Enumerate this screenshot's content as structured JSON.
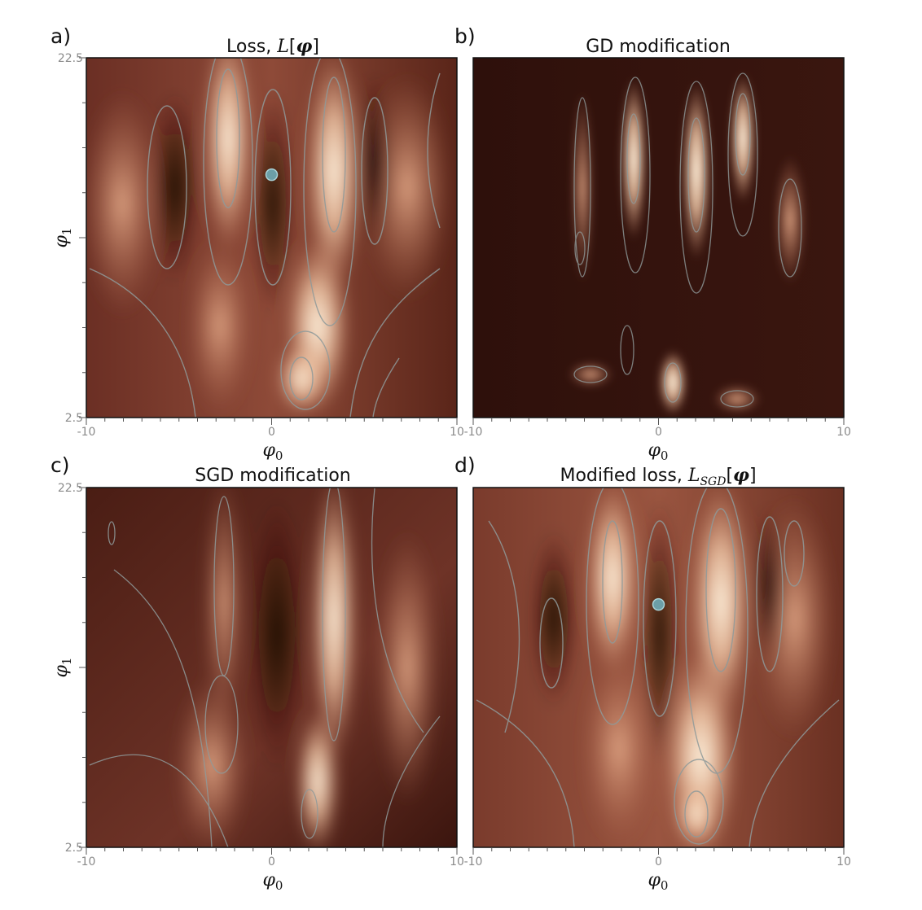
{
  "colors": {
    "dark": "#2b0f0b",
    "mid": "#9a5440",
    "light": "#fff6e4",
    "contour": "#8f9a9a",
    "marker": "#6c9fa8",
    "marker_edge": "#a9d3d8"
  },
  "axes": {
    "xlabel_symbol": "φ",
    "xlabel_sub": "0",
    "ylabel_symbol": "φ",
    "ylabel_sub": "1",
    "x_range": [
      -10,
      10
    ],
    "y_range": [
      2.5,
      22.5
    ]
  },
  "chart_data": [
    {
      "type": "heatmap",
      "letter": "a)",
      "title_text": "Loss, ",
      "title_math": "L",
      "title_bracket_open": "[",
      "title_arg": "φ",
      "title_bracket_close": "]",
      "xlabel": "φ0",
      "ylabel": "φ1",
      "xlim": [
        -10,
        10
      ],
      "ylim": [
        2.5,
        22.5
      ],
      "x_tick_labels": [
        "-10",
        "0",
        "10"
      ],
      "y_tick_labels": [
        "2.5",
        "22.5"
      ],
      "marker": {
        "x": 0.0,
        "y": 16.0
      }
    },
    {
      "type": "heatmap",
      "letter": "b)",
      "title_text": "GD modification",
      "xlabel": "φ0",
      "xlim": [
        -10,
        10
      ],
      "ylim": [
        2.5,
        22.5
      ],
      "x_tick_labels": [
        "-10",
        "0",
        "10"
      ]
    },
    {
      "type": "heatmap",
      "letter": "c)",
      "title_text": "SGD modification",
      "xlabel": "φ0",
      "ylabel": "φ1",
      "xlim": [
        -10,
        10
      ],
      "ylim": [
        2.5,
        22.5
      ],
      "x_tick_labels": [
        "-10",
        "0",
        "10"
      ],
      "y_tick_labels": [
        "2.5",
        "22.5"
      ]
    },
    {
      "type": "heatmap",
      "letter": "d)",
      "title_text": "Modified loss, ",
      "title_math": "L",
      "title_sub": "SGD",
      "title_bracket_open": "[",
      "title_arg": "φ",
      "title_bracket_close": "]",
      "xlabel": "φ0",
      "xlim": [
        -10,
        10
      ],
      "ylim": [
        2.5,
        22.5
      ],
      "x_tick_labels": [
        "-10",
        "0",
        "10"
      ],
      "marker": {
        "x": 0.0,
        "y": 16.0
      }
    }
  ]
}
